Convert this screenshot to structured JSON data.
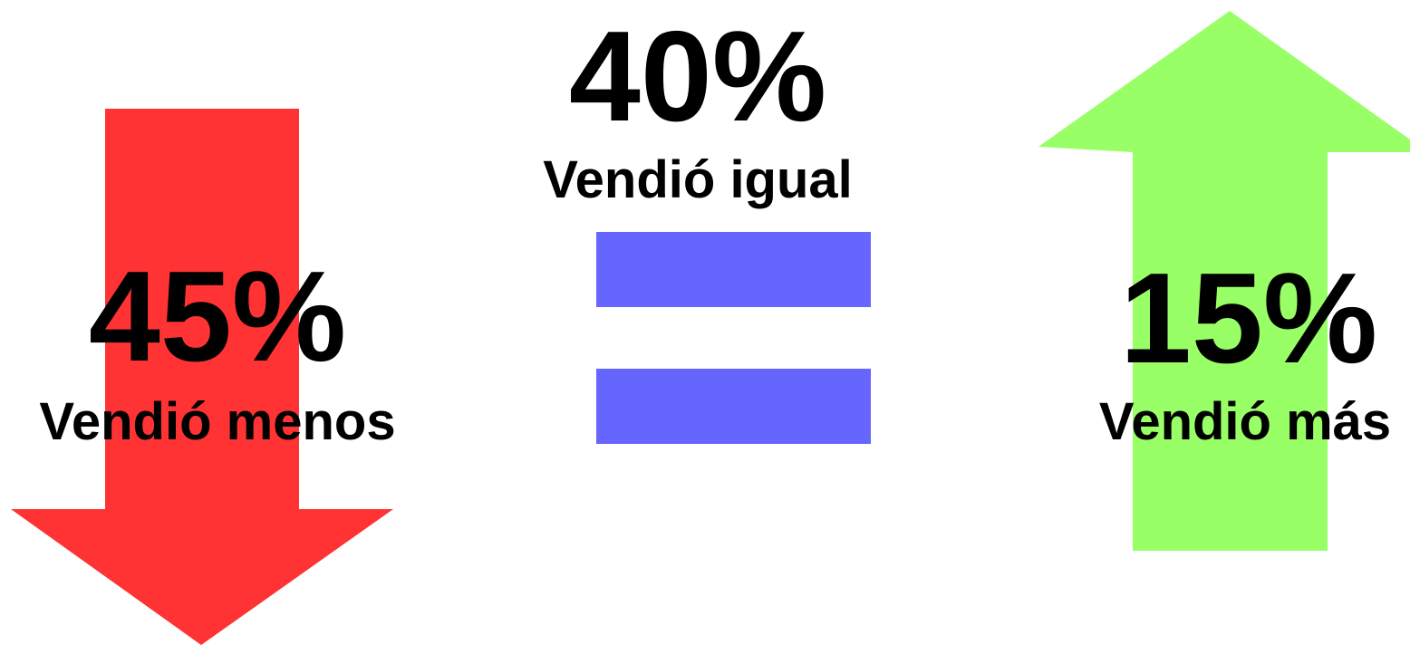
{
  "items": [
    {
      "value": "45%",
      "label": "Vendió menos"
    },
    {
      "value": "40%",
      "label": "Vendió igual"
    },
    {
      "value": "15%",
      "label": "Vendió más"
    }
  ]
}
